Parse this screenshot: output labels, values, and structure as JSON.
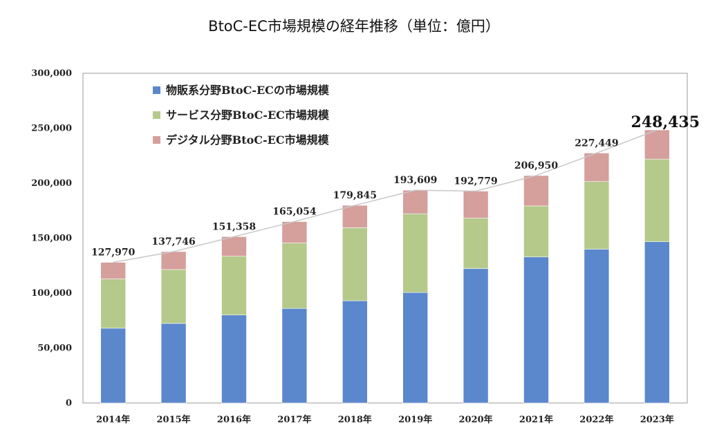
{
  "chart_data": {
    "type": "bar",
    "stacked": true,
    "title": "BtoC-EC市場規模の経年推移（単位：億円）",
    "xlabel": "",
    "ylabel": "",
    "ylim": [
      0,
      300000
    ],
    "yticks": [
      "0",
      "50,000",
      "100,000",
      "150,000",
      "200,000",
      "250,000",
      "300,000"
    ],
    "grid": false,
    "legend_position": "top-left",
    "categories": [
      "2014年",
      "2015年",
      "2016年",
      "2017年",
      "2018年",
      "2019年",
      "2020年",
      "2021年",
      "2022年",
      "2023年"
    ],
    "series": [
      {
        "name": "物販系分野BtoC-ECの市場規模",
        "color": "#5b87cc",
        "values": [
          68042,
          72398,
          80043,
          86008,
          92992,
          100515,
          122333,
          132865,
          139997,
          146760
        ]
      },
      {
        "name": "サービス分野BtoC-EC市場規模",
        "color": "#b5c98b",
        "values": [
          44816,
          49014,
          53532,
          59568,
          66471,
          71672,
          45832,
          46424,
          61477,
          75169
        ]
      },
      {
        "name": "デジタル分野BtoC-EC市場規模",
        "color": "#d59f9c",
        "values": [
          15111,
          16334,
          17782,
          19478,
          20382,
          21422,
          24614,
          27661,
          25974,
          26506
        ]
      }
    ],
    "totals": [
      "127,970",
      "137,746",
      "151,358",
      "165,054",
      "179,845",
      "193,609",
      "192,779",
      "206,950",
      "227,449",
      "248,435"
    ],
    "total_line_color": "#c8c8c8"
  }
}
